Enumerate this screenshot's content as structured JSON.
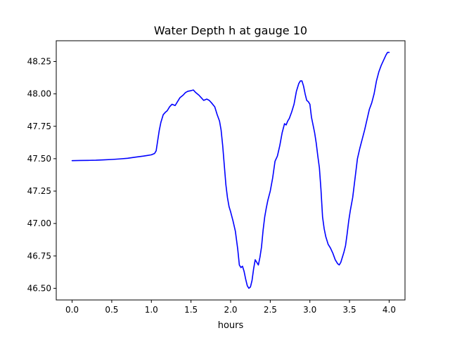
{
  "chart_data": {
    "type": "line",
    "title": "Water Depth h at gauge 10",
    "xlabel": "hours",
    "ylabel": "",
    "xlim": [
      -0.2,
      4.2
    ],
    "ylim": [
      46.41,
      48.41
    ],
    "grid": false,
    "legend": "none",
    "xticks": [
      0.0,
      0.5,
      1.0,
      1.5,
      2.0,
      2.5,
      3.0,
      3.5,
      4.0
    ],
    "xtick_labels": [
      "0.0",
      "0.5",
      "1.0",
      "1.5",
      "2.0",
      "2.5",
      "3.0",
      "3.5",
      "4.0"
    ],
    "yticks": [
      46.5,
      46.75,
      47.0,
      47.25,
      47.5,
      47.75,
      48.0,
      48.25
    ],
    "ytick_labels": [
      "46.50",
      "46.75",
      "47.00",
      "47.25",
      "47.50",
      "47.75",
      "48.00",
      "48.25"
    ],
    "series": [
      {
        "color": "#0000ff",
        "x": [
          0.0,
          0.1,
          0.2,
          0.3,
          0.4,
          0.5,
          0.6,
          0.7,
          0.8,
          0.9,
          0.95,
          1.0,
          1.04,
          1.06,
          1.08,
          1.1,
          1.12,
          1.15,
          1.18,
          1.2,
          1.23,
          1.26,
          1.3,
          1.33,
          1.36,
          1.4,
          1.43,
          1.46,
          1.5,
          1.53,
          1.56,
          1.6,
          1.63,
          1.66,
          1.7,
          1.73,
          1.76,
          1.8,
          1.83,
          1.86,
          1.88,
          1.9,
          1.92,
          1.94,
          1.96,
          1.98,
          2.0,
          2.03,
          2.06,
          2.09,
          2.11,
          2.13,
          2.15,
          2.17,
          2.19,
          2.21,
          2.23,
          2.25,
          2.27,
          2.29,
          2.31,
          2.33,
          2.35,
          2.37,
          2.39,
          2.41,
          2.43,
          2.45,
          2.47,
          2.5,
          2.53,
          2.56,
          2.59,
          2.62,
          2.65,
          2.68,
          2.7,
          2.72,
          2.74,
          2.77,
          2.8,
          2.83,
          2.86,
          2.88,
          2.9,
          2.92,
          2.94,
          2.96,
          2.98,
          3.0,
          3.02,
          3.04,
          3.06,
          3.08,
          3.1,
          3.12,
          3.14,
          3.16,
          3.18,
          3.2,
          3.23,
          3.26,
          3.29,
          3.32,
          3.35,
          3.37,
          3.39,
          3.41,
          3.43,
          3.45,
          3.47,
          3.49,
          3.51,
          3.54,
          3.57,
          3.6,
          3.63,
          3.66,
          3.69,
          3.72,
          3.75,
          3.78,
          3.81,
          3.84,
          3.87,
          3.9,
          3.93,
          3.96,
          3.98,
          4.0
        ],
        "y": [
          47.485,
          47.486,
          47.487,
          47.488,
          47.491,
          47.494,
          47.498,
          47.503,
          47.512,
          47.52,
          47.525,
          47.53,
          47.54,
          47.56,
          47.64,
          47.72,
          47.78,
          47.84,
          47.86,
          47.87,
          47.9,
          47.92,
          47.91,
          47.94,
          47.97,
          47.99,
          48.01,
          48.02,
          48.025,
          48.03,
          48.01,
          47.99,
          47.97,
          47.95,
          47.96,
          47.95,
          47.93,
          47.9,
          47.84,
          47.79,
          47.72,
          47.6,
          47.45,
          47.3,
          47.2,
          47.13,
          47.09,
          47.02,
          46.94,
          46.8,
          46.68,
          46.66,
          46.67,
          46.63,
          46.57,
          46.52,
          46.5,
          46.51,
          46.56,
          46.65,
          46.72,
          46.7,
          46.68,
          46.74,
          46.82,
          46.95,
          47.05,
          47.12,
          47.18,
          47.25,
          47.35,
          47.48,
          47.52,
          47.6,
          47.7,
          47.77,
          47.76,
          47.79,
          47.81,
          47.86,
          47.92,
          48.02,
          48.08,
          48.1,
          48.1,
          48.06,
          48.0,
          47.95,
          47.94,
          47.92,
          47.82,
          47.76,
          47.7,
          47.62,
          47.52,
          47.43,
          47.26,
          47.05,
          46.96,
          46.9,
          46.84,
          46.81,
          46.77,
          46.72,
          46.69,
          46.68,
          46.7,
          46.74,
          46.78,
          46.83,
          46.92,
          47.02,
          47.1,
          47.2,
          47.35,
          47.5,
          47.58,
          47.65,
          47.72,
          47.8,
          47.88,
          47.93,
          48.0,
          48.1,
          48.17,
          48.22,
          48.26,
          48.3,
          48.32,
          48.32
        ]
      }
    ]
  }
}
